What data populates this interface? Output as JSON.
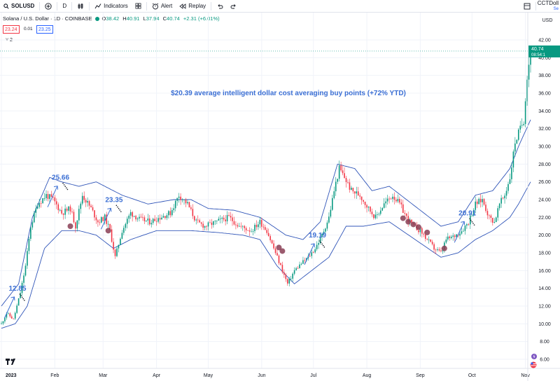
{
  "toolbar": {
    "symbol": "SOLUSD",
    "add_symbol_icon": "plus-circle-icon",
    "interval": "D",
    "chart_type_icon": "candles-icon",
    "indicators_label": "Indicators",
    "templates_icon": "grid-icon",
    "alert_label": "Alert",
    "replay_label": "Replay",
    "undo_icon": "undo-icon",
    "redo_icon": "redo-icon",
    "layout_icon": "layout-icon",
    "account_name": "CCTDoll",
    "account_sub": "Se"
  },
  "legend": {
    "title": "Solana / U.S. Dollar · 1D · COINBASE",
    "open_k": "O",
    "open_v": "38.42",
    "high_k": "H",
    "high_v": "40.91",
    "low_k": "L",
    "low_v": "37.94",
    "close_k": "C",
    "close_v": "40.74",
    "change": "+2.31 (+6.01%)",
    "bid": "23.24",
    "spread": "0.01",
    "ask": "23.25",
    "collapse": "˅ 2"
  },
  "colors": {
    "up": "#089981",
    "down": "#f23645",
    "band": "#3055b8",
    "annotation": "#3b6fd4",
    "dots": "#8a3e55"
  },
  "price_label": {
    "price": "40.74",
    "countdown": "08:54:1"
  },
  "chart_data": {
    "type": "candlestick",
    "title": "$20.39 average intelligent dollar cost averaging buy points (+72% YTD)",
    "currency": "USD",
    "ylim": [
      5,
      44
    ],
    "yticks": [
      6,
      8,
      10,
      12,
      14,
      16,
      18,
      20,
      22,
      24,
      26,
      28,
      30,
      32,
      34,
      36,
      38,
      40,
      42
    ],
    "xticks": [
      {
        "label": "2023",
        "day": 0
      },
      {
        "label": "Feb",
        "day": 31
      },
      {
        "label": "Mar",
        "day": 59
      },
      {
        "label": "Apr",
        "day": 90
      },
      {
        "label": "May",
        "day": 120
      },
      {
        "label": "Jun",
        "day": 151
      },
      {
        "label": "Jul",
        "day": 181
      },
      {
        "label": "Aug",
        "day": 212
      },
      {
        "label": "Sep",
        "day": 243
      },
      {
        "label": "Oct",
        "day": 273
      },
      {
        "label": "Nov",
        "day": 304
      }
    ],
    "close_anchors": [
      [
        0,
        10.0
      ],
      [
        3,
        11.2
      ],
      [
        7,
        10.5
      ],
      [
        11,
        13.5
      ],
      [
        14,
        16.5
      ],
      [
        17,
        21.0
      ],
      [
        21,
        23.5
      ],
      [
        26,
        24.5
      ],
      [
        30,
        24.0
      ],
      [
        35,
        22.5
      ],
      [
        40,
        23.0
      ],
      [
        43,
        21.0
      ],
      [
        47,
        24.5
      ],
      [
        52,
        23.0
      ],
      [
        56,
        21.5
      ],
      [
        60,
        22.0
      ],
      [
        63,
        20.5
      ],
      [
        66,
        17.5
      ],
      [
        70,
        20.5
      ],
      [
        75,
        22.5
      ],
      [
        80,
        21.8
      ],
      [
        86,
        21.5
      ],
      [
        92,
        22.0
      ],
      [
        98,
        22.5
      ],
      [
        103,
        24.5
      ],
      [
        108,
        23.5
      ],
      [
        113,
        21.5
      ],
      [
        118,
        21.0
      ],
      [
        125,
        21.5
      ],
      [
        132,
        22.0
      ],
      [
        138,
        21.0
      ],
      [
        145,
        20.5
      ],
      [
        150,
        21.5
      ],
      [
        154,
        20.5
      ],
      [
        158,
        18.5
      ],
      [
        162,
        16.5
      ],
      [
        166,
        14.5
      ],
      [
        170,
        16.0
      ],
      [
        174,
        16.8
      ],
      [
        178,
        17.5
      ],
      [
        182,
        18.5
      ],
      [
        186,
        20.0
      ],
      [
        190,
        22.0
      ],
      [
        193,
        25.0
      ],
      [
        196,
        27.5
      ],
      [
        199,
        26.5
      ],
      [
        203,
        25.0
      ],
      [
        208,
        24.5
      ],
      [
        213,
        23.0
      ],
      [
        217,
        22.0
      ],
      [
        222,
        23.5
      ],
      [
        227,
        24.5
      ],
      [
        231,
        23.5
      ],
      [
        235,
        22.0
      ],
      [
        239,
        21.0
      ],
      [
        243,
        20.5
      ],
      [
        247,
        19.5
      ],
      [
        251,
        18.5
      ],
      [
        255,
        18.0
      ],
      [
        258,
        19.5
      ],
      [
        262,
        19.8
      ],
      [
        267,
        20.5
      ],
      [
        271,
        21.5
      ],
      [
        275,
        23.5
      ],
      [
        279,
        24.0
      ],
      [
        283,
        22.0
      ],
      [
        286,
        21.5
      ],
      [
        289,
        23.5
      ],
      [
        292,
        24.5
      ],
      [
        295,
        26.5
      ],
      [
        298,
        30.5
      ],
      [
        301,
        32.0
      ],
      [
        303,
        33.0
      ],
      [
        305,
        38.0
      ],
      [
        307,
        40.74
      ]
    ],
    "bollinger": {
      "upper": [
        [
          0,
          12.0
        ],
        [
          10,
          14.5
        ],
        [
          18,
          22.0
        ],
        [
          28,
          26.5
        ],
        [
          35,
          26.0
        ],
        [
          45,
          25.5
        ],
        [
          55,
          26.0
        ],
        [
          70,
          24.5
        ],
        [
          85,
          23.5
        ],
        [
          100,
          24.0
        ],
        [
          110,
          24.0
        ],
        [
          120,
          23.0
        ],
        [
          135,
          22.8
        ],
        [
          150,
          22.0
        ],
        [
          165,
          20.0
        ],
        [
          175,
          19.5
        ],
        [
          185,
          21.5
        ],
        [
          195,
          28.0
        ],
        [
          205,
          27.5
        ],
        [
          215,
          25.0
        ],
        [
          225,
          25.5
        ],
        [
          235,
          24.0
        ],
        [
          245,
          22.5
        ],
        [
          255,
          21.0
        ],
        [
          265,
          21.5
        ],
        [
          275,
          24.5
        ],
        [
          285,
          25.0
        ],
        [
          295,
          27.5
        ],
        [
          300,
          30.0
        ],
        [
          307,
          33.0
        ]
      ],
      "lower": [
        [
          0,
          9.5
        ],
        [
          8,
          10.0
        ],
        [
          15,
          12.0
        ],
        [
          25,
          18.5
        ],
        [
          35,
          20.5
        ],
        [
          45,
          20.5
        ],
        [
          55,
          20.0
        ],
        [
          65,
          18.5
        ],
        [
          75,
          19.5
        ],
        [
          90,
          20.5
        ],
        [
          110,
          20.5
        ],
        [
          125,
          20.3
        ],
        [
          140,
          20.0
        ],
        [
          150,
          19.5
        ],
        [
          160,
          16.5
        ],
        [
          170,
          14.5
        ],
        [
          180,
          16.0
        ],
        [
          190,
          17.5
        ],
        [
          200,
          21.0
        ],
        [
          210,
          21.0
        ],
        [
          225,
          21.5
        ],
        [
          240,
          19.5
        ],
        [
          255,
          17.5
        ],
        [
          265,
          18.0
        ],
        [
          275,
          19.5
        ],
        [
          285,
          20.5
        ],
        [
          295,
          22.0
        ],
        [
          300,
          23.5
        ],
        [
          307,
          26.0
        ]
      ]
    },
    "annotations": [
      {
        "label": "12.85",
        "day": 1,
        "price": 13.5
      },
      {
        "label": "25.66",
        "day": 26,
        "price": 26.0
      },
      {
        "label": "23.35",
        "day": 57,
        "price": 23.5
      },
      {
        "label": "19.19",
        "day": 175,
        "price": 19.5
      },
      {
        "label": "20.91",
        "day": 262,
        "price": 22.0
      }
    ],
    "buy_points": [
      {
        "day": 40,
        "price": 21.0
      },
      {
        "day": 62,
        "price": 20.5
      },
      {
        "day": 161,
        "price": 18.6
      },
      {
        "day": 163,
        "price": 18.2
      },
      {
        "day": 233,
        "price": 21.9
      },
      {
        "day": 236,
        "price": 21.5
      },
      {
        "day": 239,
        "price": 21.2
      },
      {
        "day": 242,
        "price": 20.9
      },
      {
        "day": 247,
        "price": 20.3
      },
      {
        "day": 257,
        "price": 18.5
      }
    ]
  }
}
